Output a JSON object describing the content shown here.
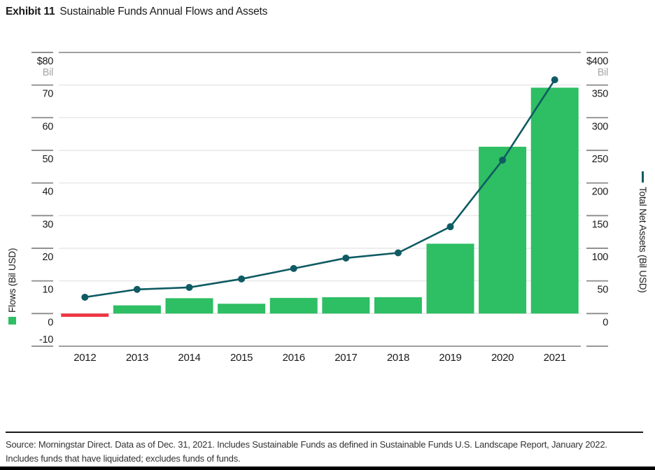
{
  "title": {
    "exhibit": "Exhibit 11",
    "text": "Sustainable Funds Annual Flows and Assets"
  },
  "footer": {
    "text": "Source: Morningstar Direct. Data as of Dec. 31, 2021. Includes Sustainable Funds as defined in Sustainable Funds U.S. Landscape Report, January 2022. Includes funds that have liquidated; excludes funds of funds."
  },
  "chart_data": {
    "type": "bar+line",
    "title": "Sustainable Funds Annual Flows and Assets",
    "categories": [
      "2012",
      "2013",
      "2014",
      "2015",
      "2016",
      "2017",
      "2018",
      "2019",
      "2020",
      "2021"
    ],
    "series": [
      {
        "name": "Flows (Bil USD)",
        "type": "bar",
        "axis": "left",
        "values": [
          -1,
          2.5,
          4.7,
          3,
          4.8,
          5,
          5,
          21.4,
          51.1,
          69.2
        ]
      },
      {
        "name": "Total Net Assets (Bil USD)",
        "type": "line",
        "axis": "right",
        "values": [
          25,
          37,
          40,
          53,
          69,
          85,
          93,
          133,
          235,
          358
        ]
      }
    ],
    "left_axis": {
      "title": "Flows (Bil USD)",
      "top_label": "$80",
      "unit": "Bil",
      "ticks": [
        70,
        60,
        50,
        40,
        30,
        20,
        10,
        0
      ],
      "bottom_label": "-10",
      "grid": [
        70,
        60,
        50,
        40,
        30,
        20,
        10,
        0
      ],
      "tick_levels": [
        80,
        70,
        60,
        50,
        40,
        30,
        20,
        10,
        0,
        -10
      ],
      "range": [
        -10,
        80
      ]
    },
    "right_axis": {
      "title": "Total Net Assets (Bil USD)",
      "top_label": "$400",
      "unit": "Bil",
      "ticks": [
        350,
        300,
        250,
        200,
        150,
        100,
        50,
        0
      ],
      "range": [
        0,
        400
      ],
      "to_left": 0.2
    },
    "legend": {
      "bar_label": "Flows (Bil USD)",
      "line_label": "Total Net Assets (Bil USD)"
    },
    "colors": {
      "bar_positive": "#2ebe63",
      "bar_negative": "#ef3341",
      "line": "#0f5b63",
      "grid": "#dedede",
      "border": "#a0a0a0",
      "tick": "#8a8a8a",
      "text": "#1a1a1a",
      "muted": "#a6a6a6"
    }
  }
}
